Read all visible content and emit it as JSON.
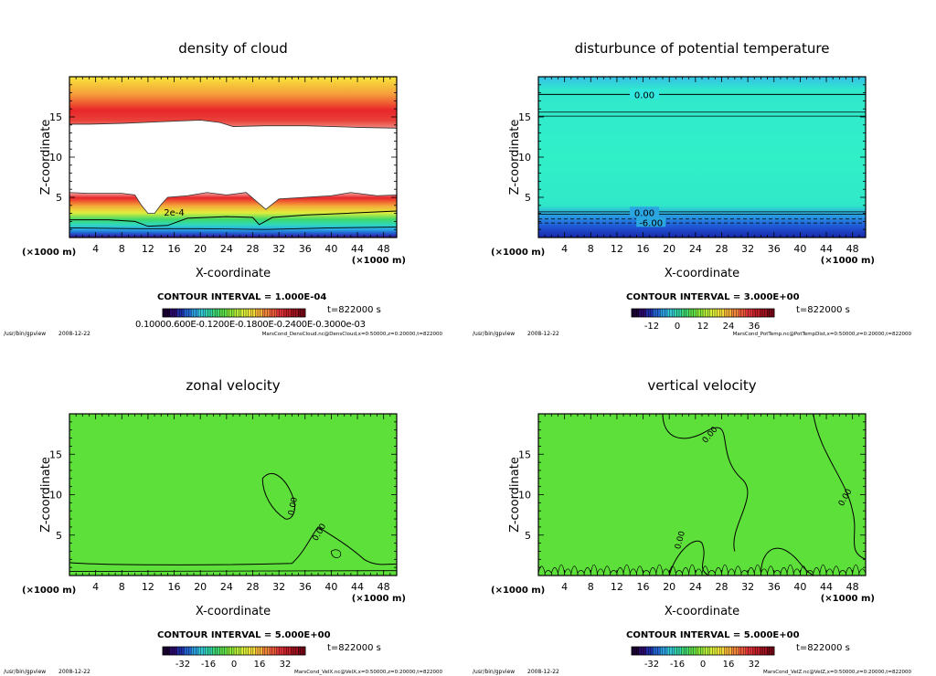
{
  "colorbar_colors": [
    "#1a0033",
    "#2a0a6b",
    "#1f2fa8",
    "#2466d6",
    "#2c9fe0",
    "#35c9d6",
    "#33d3a8",
    "#3fd873",
    "#5ee04a",
    "#8ae83a",
    "#b7ee3a",
    "#dff03a",
    "#f6e13a",
    "#f8b63a",
    "#f5883a",
    "#ef5a3a",
    "#e1333a",
    "#c4202a",
    "#a0121e",
    "#7a0818"
  ],
  "chart_data": [
    {
      "type": "heatmap",
      "title": "density of cloud",
      "xlabel": "X-coordinate",
      "ylabel": "Z-coordinate",
      "x_unit": "(×1000 m)",
      "z_unit": "(×1000 m)",
      "xlim": [
        0,
        50
      ],
      "ylim": [
        0,
        20
      ],
      "x_ticks": [
        4,
        8,
        12,
        16,
        20,
        24,
        28,
        32,
        36,
        40,
        44,
        48
      ],
      "y_ticks": [
        5,
        10,
        15
      ],
      "contour_labels": [
        "2e-4"
      ],
      "contour_interval": "CONTOUR INTERVAL = 1.000E-04",
      "time": "t=822000 s",
      "colorbar_tick_text": "0.10000.600E-0.1200E-0.1800E-0.2400E-0.3000e-03",
      "path": "/usr/bin/gpview",
      "date": "2008-12-22",
      "source": "MarsCond_DensCloud.nc@DensCloud,x=0:50000,z=0:20000,t=822000"
    },
    {
      "type": "heatmap",
      "title": "disturbunce of potential temperature",
      "xlabel": "X-coordinate",
      "ylabel": "Z-coordinate",
      "x_unit": "(×1000 m)",
      "z_unit": "(×1000 m)",
      "xlim": [
        0,
        50
      ],
      "ylim": [
        0,
        20
      ],
      "x_ticks": [
        4,
        8,
        12,
        16,
        20,
        24,
        28,
        32,
        36,
        40,
        44,
        48
      ],
      "y_ticks": [
        5,
        10,
        15
      ],
      "contour_labels": [
        "0.00",
        "0.00",
        "-6.00"
      ],
      "contour_interval": "CONTOUR INTERVAL = 3.000E+00",
      "time": "t=822000 s",
      "colorbar_ticks": [
        "-12",
        "0",
        "12",
        "24",
        "36"
      ],
      "path": "/usr/bin/gpview",
      "date": "2008-12-22",
      "source": "MarsCond_PotTemp.nc@PotTempDist,x=0:50000,z=0:20000,t=822000"
    },
    {
      "type": "heatmap",
      "title": "zonal velocity",
      "xlabel": "X-coordinate",
      "ylabel": "Z-coordinate",
      "x_unit": "(×1000 m)",
      "z_unit": "(×1000 m)",
      "xlim": [
        0,
        50
      ],
      "ylim": [
        0,
        20
      ],
      "x_ticks": [
        4,
        8,
        12,
        16,
        20,
        24,
        28,
        32,
        36,
        40,
        44,
        48
      ],
      "y_ticks": [
        5,
        10,
        15
      ],
      "contour_labels": [
        "0.00",
        "0.00"
      ],
      "contour_interval": "CONTOUR INTERVAL = 5.000E+00",
      "time": "t=822000 s",
      "colorbar_ticks": [
        "-32",
        "-16",
        "0",
        "16",
        "32"
      ],
      "path": "/usr/bin/gpview",
      "date": "2008-12-22",
      "source": "MarsCond_VelX.nc@VelX,x=0:50000,z=0:20000,t=822000"
    },
    {
      "type": "heatmap",
      "title": "vertical velocity",
      "xlabel": "X-coordinate",
      "ylabel": "Z-coordinate",
      "x_unit": "(×1000 m)",
      "z_unit": "(×1000 m)",
      "xlim": [
        0,
        50
      ],
      "ylim": [
        0,
        20
      ],
      "x_ticks": [
        4,
        8,
        12,
        16,
        20,
        24,
        28,
        32,
        36,
        40,
        44,
        48
      ],
      "y_ticks": [
        5,
        10,
        15
      ],
      "contour_labels": [
        "0.00",
        "0.00",
        "0.00"
      ],
      "contour_interval": "CONTOUR INTERVAL = 5.000E+00",
      "time": "t=822000 s",
      "colorbar_ticks": [
        "-32",
        "-16",
        "0",
        "16",
        "32"
      ],
      "path": "/usr/bin/gpview",
      "date": "2008-12-22",
      "source": "MarsCond_VelZ.nc@VelZ,x=0:50000,z=0:20000,t=822000"
    }
  ]
}
